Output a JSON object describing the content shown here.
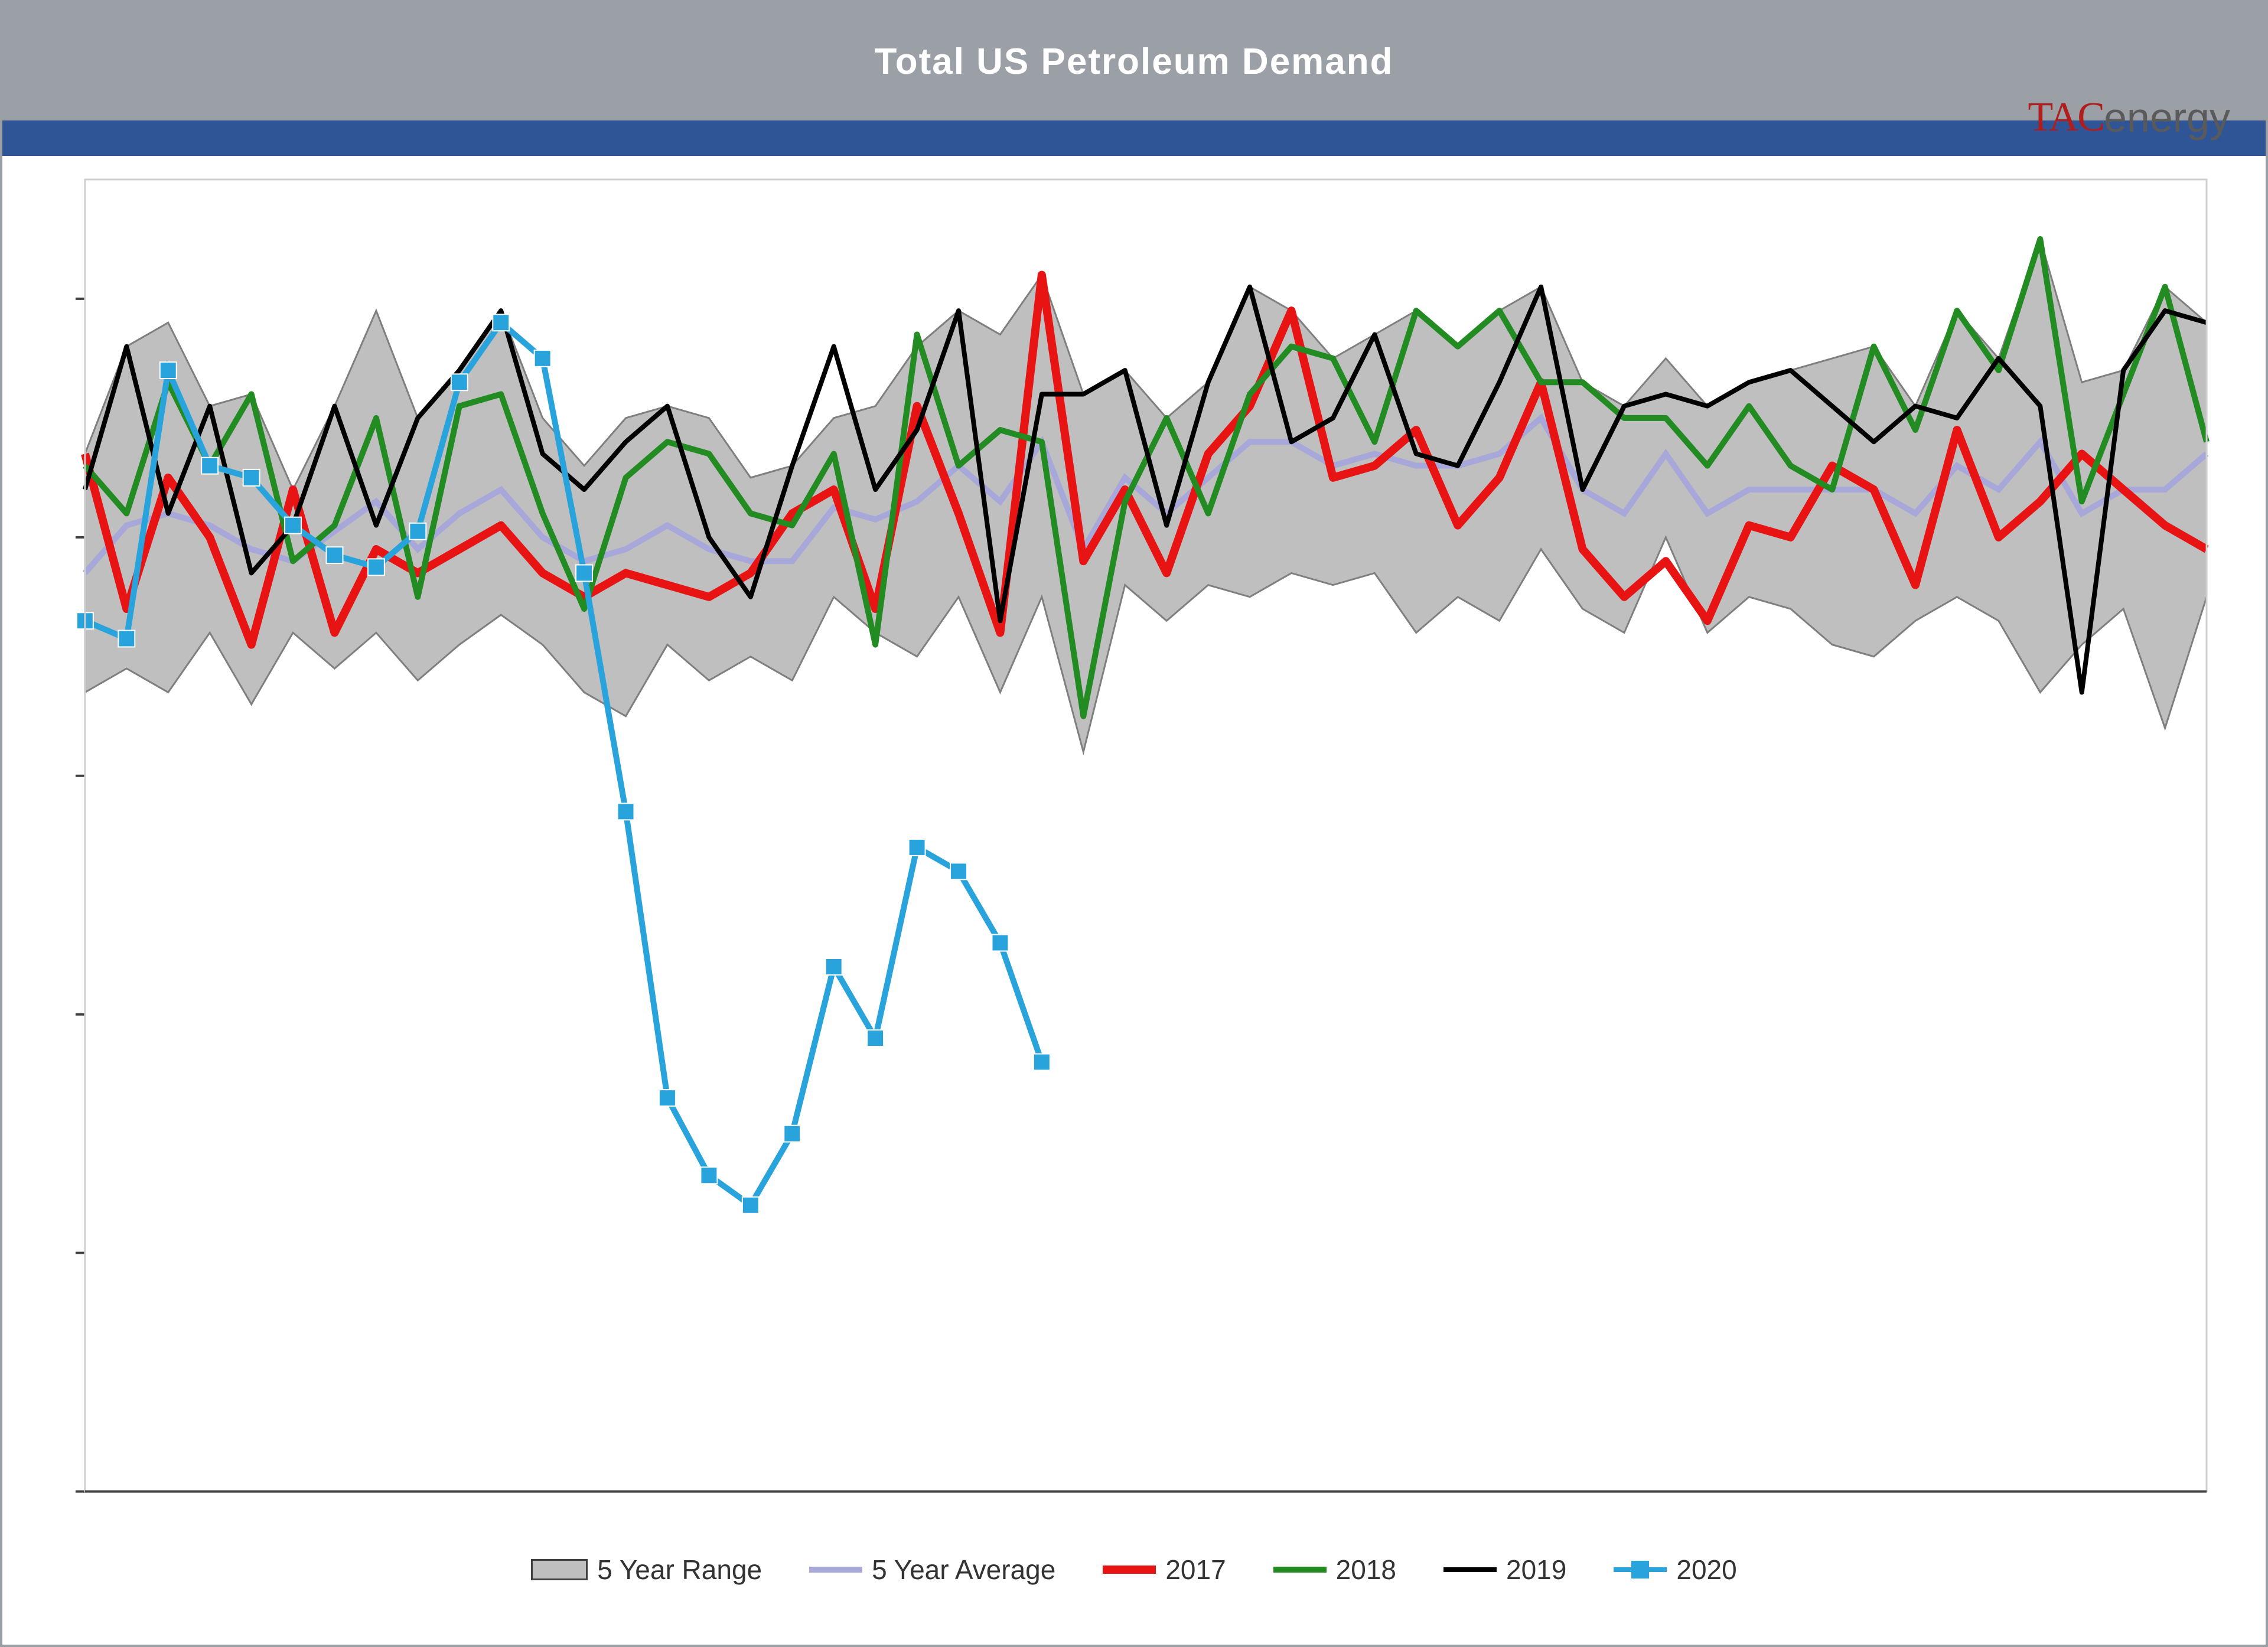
{
  "title": "Total US Petroleum Demand",
  "logo": {
    "brand": "TAC",
    "suffix": "energy"
  },
  "chart": {
    "type": "line",
    "background_color": "#ffffff",
    "title_bar_color": "#9aa0a6",
    "accent_band_color": "#2f5597",
    "title_color": "#ffffff",
    "title_fontsize": 62,
    "grid_color": "#bfbfbf",
    "axis_color": "#404040",
    "x_count": 52,
    "ylim": [
      12000,
      23000
    ],
    "ytick_step": 2000,
    "legend": [
      {
        "key": "range",
        "label": "5 Year Range",
        "type": "range",
        "fill": "#bfbfbf",
        "stroke": "#404040"
      },
      {
        "key": "avg",
        "label": "5 Year Average",
        "type": "line",
        "color": "#a7a7d9",
        "width": 10
      },
      {
        "key": "y2017",
        "label": "2017",
        "type": "line",
        "color": "#e81313",
        "width": 14
      },
      {
        "key": "y2018",
        "label": "2018",
        "type": "line",
        "color": "#228b22",
        "width": 10
      },
      {
        "key": "y2019",
        "label": "2019",
        "type": "line",
        "color": "#000000",
        "width": 8
      },
      {
        "key": "y2020",
        "label": "2020",
        "type": "linept",
        "color": "#29a3dc",
        "width": 10,
        "marker_size": 28
      }
    ],
    "range_upper": [
      20700,
      21600,
      21800,
      21100,
      21200,
      20400,
      21100,
      21900,
      21000,
      21400,
      21900,
      21000,
      20600,
      21000,
      21100,
      21000,
      20500,
      20600,
      21000,
      21100,
      21600,
      21900,
      21700,
      22200,
      21200,
      21400,
      21000,
      21300,
      22100,
      21900,
      21500,
      21700,
      21900,
      21600,
      21900,
      22100,
      21300,
      21100,
      21500,
      21100,
      21300,
      21400,
      21500,
      21600,
      21100,
      21900,
      21500,
      22500,
      21300,
      21400,
      22100,
      21800
    ],
    "range_lower": [
      18700,
      18900,
      18700,
      19200,
      18600,
      19200,
      18900,
      19200,
      18800,
      19100,
      19350,
      19100,
      18700,
      18500,
      19100,
      18800,
      19000,
      18800,
      19500,
      19200,
      19000,
      19500,
      18700,
      19500,
      18200,
      19600,
      19300,
      19600,
      19500,
      19700,
      19600,
      19700,
      19200,
      19500,
      19300,
      19900,
      19400,
      19200,
      20000,
      19200,
      19500,
      19400,
      19100,
      19000,
      19300,
      19500,
      19300,
      18700,
      19100,
      19400,
      18400,
      19500
    ],
    "avg": [
      19700,
      20100,
      20200,
      20100,
      19900,
      19800,
      20050,
      20300,
      19900,
      20200,
      20400,
      20000,
      19800,
      19900,
      20100,
      19900,
      19800,
      19800,
      20250,
      20150,
      20300,
      20600,
      20300,
      20800,
      19900,
      20500,
      20200,
      20500,
      20800,
      20800,
      20600,
      20700,
      20600,
      20600,
      20700,
      21000,
      20400,
      20200,
      20700,
      20200,
      20400,
      20400,
      20400,
      20400,
      20200,
      20600,
      20400,
      20800,
      20200,
      20400,
      20400,
      20700
    ],
    "y2017": [
      20700,
      19400,
      20500,
      20000,
      19100,
      20400,
      19200,
      19900,
      19700,
      19900,
      20100,
      19700,
      19500,
      19700,
      19600,
      19500,
      19700,
      20200,
      20400,
      19400,
      21100,
      20200,
      19200,
      22200,
      19800,
      20400,
      19700,
      20700,
      21100,
      21900,
      20500,
      20600,
      20900,
      20100,
      20500,
      21300,
      19900,
      19500,
      19800,
      19300,
      20100,
      20000,
      20600,
      20400,
      19600,
      20900,
      20000,
      20300,
      20700,
      20400,
      20100,
      19900
    ],
    "y2018": [
      20600,
      20200,
      21300,
      20600,
      21200,
      19800,
      20100,
      21000,
      19500,
      21100,
      21200,
      20200,
      19400,
      20500,
      20800,
      20700,
      20200,
      20100,
      20700,
      19100,
      21700,
      20600,
      20900,
      20800,
      18500,
      20300,
      21000,
      20200,
      21200,
      21600,
      21500,
      20800,
      21900,
      21600,
      21900,
      21300,
      21300,
      21000,
      21000,
      20600,
      21100,
      20600,
      20400,
      21600,
      20900,
      21900,
      21400,
      22500,
      20300,
      21200,
      22100,
      20800
    ],
    "y2019": [
      20400,
      21600,
      20200,
      21100,
      19700,
      20100,
      21100,
      20100,
      21000,
      21400,
      21900,
      20700,
      20400,
      20800,
      21100,
      20000,
      19500,
      20600,
      21600,
      20400,
      20900,
      21900,
      19300,
      21200,
      21200,
      21400,
      20100,
      21300,
      22100,
      20800,
      21000,
      21700,
      20700,
      20600,
      21300,
      22100,
      20400,
      21100,
      21200,
      21100,
      21300,
      21400,
      21100,
      20800,
      21100,
      21000,
      21500,
      21100,
      18700,
      21400,
      21900,
      21800
    ],
    "y2020": [
      19300,
      19150,
      21400,
      20600,
      20500,
      20100,
      19850,
      19750,
      20050,
      21300,
      21800,
      21500,
      19700,
      17700,
      15300,
      14650,
      14400,
      15000,
      16400,
      15800,
      17400,
      17200,
      16600,
      15600
    ],
    "series_colors": {
      "range_fill": "#bfbfbf",
      "range_stroke": "#7f7f7f",
      "avg": "#a7a7d9",
      "y2017": "#e81313",
      "y2018": "#228b22",
      "y2019": "#000000",
      "y2020": "#29a3dc"
    },
    "line_widths": {
      "avg": 10,
      "y2017": 14,
      "y2018": 10,
      "y2019": 8,
      "y2020": 10
    }
  }
}
